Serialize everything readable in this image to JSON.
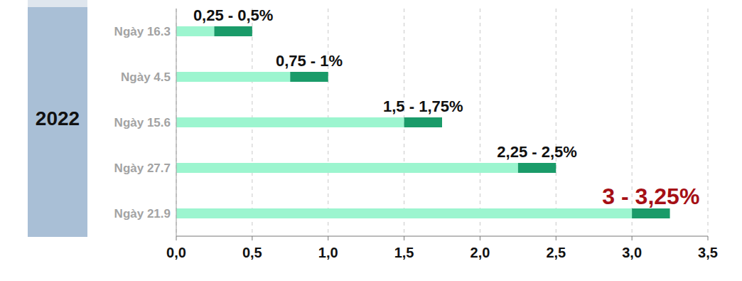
{
  "chart_data": {
    "type": "bar",
    "orientation": "horizontal",
    "stacked": true,
    "group_label": "2022",
    "categories": [
      "Ngày 16.3",
      "Ngày 4.5",
      "Ngày 15.6",
      "Ngày 27.7",
      "Ngày 21.9"
    ],
    "series": [
      {
        "color": "#9cf5cf",
        "values": [
          0.25,
          0.75,
          1.5,
          2.25,
          3
        ]
      },
      {
        "color": "#1a9b69",
        "values": [
          0.25,
          0.25,
          0.25,
          0.25,
          0.25
        ]
      }
    ],
    "annotations": [
      "0,25 - 0,5%",
      "0,75 - 1%",
      "1,5 - 1,75%",
      "2,25 - 2,5%",
      "3 - 3,25%"
    ],
    "xlim": [
      0,
      3.5
    ],
    "xticks": [
      {
        "value": 0,
        "label": "0,0"
      },
      {
        "value": 0.5,
        "label": "0,5"
      },
      {
        "value": 1,
        "label": "1,0"
      },
      {
        "value": 1.5,
        "label": "1,5"
      },
      {
        "value": 2,
        "label": "2,0"
      },
      {
        "value": 2.5,
        "label": "2,5"
      },
      {
        "value": 3,
        "label": "3,0"
      },
      {
        "value": 3.5,
        "label": "3,5"
      }
    ],
    "grid": true
  }
}
